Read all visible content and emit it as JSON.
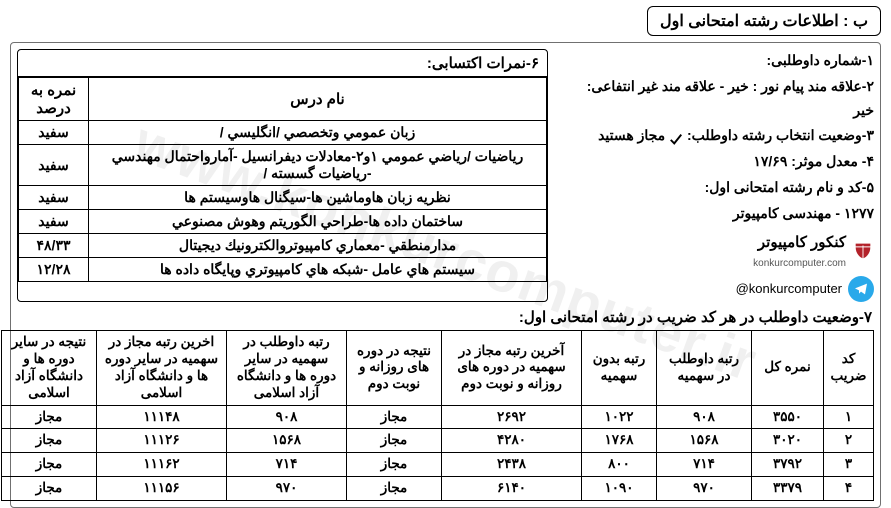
{
  "title": "ب : اطلاعات رشته امتحانی اول",
  "info": {
    "l1_label": "۱-شماره داوطلبی:",
    "l2_label": "۲-علاقه مند پیام نور :",
    "l2_ans1": "خیر",
    "l2_sep": " - ",
    "l2_label2": "علاقه مند غیر انتفاعی:",
    "l2_ans2": "خیر",
    "l3_label": "۳-وضعیت انتخاب رشته داوطلب:",
    "l3_ans": "مجاز هستید",
    "l4_label": "۴- معدل موثر:",
    "l4_ans": "۱۷/۶۹",
    "l5_label": "۵-کد و نام رشته امتحانی اول:",
    "l5_ans": "۱۲۷۷ - مهندسی کامپیوتر"
  },
  "brand": {
    "fa": "کنکور کامپیوتر",
    "en": "konkurcomputer.com",
    "handle": "@konkurcomputer",
    "logo_color": "#b3222a",
    "telegram_color": "#29a9ea"
  },
  "grades": {
    "title": "۶-نمرات اکتسابی:",
    "h_name": "نام درس",
    "h_pct": "نمره به درصد",
    "rows": [
      {
        "name": "زبان عمومي وتخصصي /انگليسي /",
        "pct": "سفید"
      },
      {
        "name": "رياضيات /رياضي عمومي ۱و۲-معادلات ديفرانسيل -آمارواحتمال مهندسي -رياضيات گسسته /",
        "pct": "سفید"
      },
      {
        "name": "نظريه زبان هاوماشين ها-سيگنال هاوسيستم ها",
        "pct": "سفید"
      },
      {
        "name": "ساختمان داده ها-طراحي الگوريتم وهوش مصنوعي",
        "pct": "سفید"
      },
      {
        "name": "مدارمنطقي -معماري كامپيوتروالكترونيك ديجيتال",
        "pct": "۴۸/۳۳"
      },
      {
        "name": "سيستم هاي عامل -شبكه هاي كامپيوتري وپايگاه داده ها",
        "pct": "۱۲/۲۸"
      }
    ]
  },
  "status": {
    "title": "۷-وضعیت داوطلب در هر کد ضریب در رشته امتحانی اول:",
    "headers": [
      "کد ضریب",
      "نمره کل",
      "رتبه داوطلب در سهمیه",
      "رتبه بدون سهمیه",
      "آخرین رتبه مجاز در سهمیه در دوره های روزانه و نوبت دوم",
      "نتیجه در دوره های روزانه و نوبت دوم",
      "رتبه داوطلب در سهمیه در سایر دوره ها و دانشگاه آزاد اسلامی",
      "اخرین رتبه مجاز در سهمیه در سایر دوره ها و دانشگاه آزاد اسلامی",
      "نتیجه در سایر دوره ها و دانشگاه آزاد اسلامی"
    ],
    "rows": [
      [
        "۱",
        "۳۵۵۰",
        "۹۰۸",
        "۱۰۲۲",
        "۲۶۹۲",
        "مجاز",
        "۹۰۸",
        "۱۱۱۴۸",
        "مجاز"
      ],
      [
        "۲",
        "۳۰۲۰",
        "۱۵۶۸",
        "۱۷۶۸",
        "۴۲۸۰",
        "مجاز",
        "۱۵۶۸",
        "۱۱۱۲۶",
        "مجاز"
      ],
      [
        "۳",
        "۳۷۹۲",
        "۷۱۴",
        "۸۰۰",
        "۲۴۳۸",
        "مجاز",
        "۷۱۴",
        "۱۱۱۶۲",
        "مجاز"
      ],
      [
        "۴",
        "۳۳۷۹",
        "۹۷۰",
        "۱۰۹۰",
        "۶۱۴۰",
        "مجاز",
        "۹۷۰",
        "۱۱۱۵۶",
        "مجاز"
      ]
    ]
  },
  "watermark": "www.konkurcomputer.ir",
  "colors": {
    "border": "#000000",
    "text": "#000000",
    "bg": "#ffffff"
  }
}
